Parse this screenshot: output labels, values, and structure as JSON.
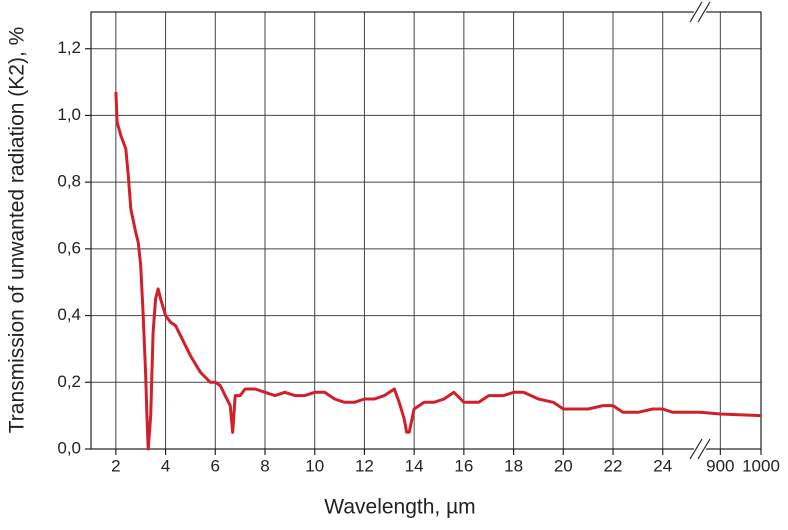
{
  "chart_data": {
    "type": "line",
    "x_label": "Wavelength, µm",
    "y_label": "Transmission of unwanted radiation (K2), %",
    "xlim": [
      1,
      1000
    ],
    "x_break": [
      25.5,
      850
    ],
    "xticks": [
      2,
      4,
      6,
      8,
      10,
      12,
      14,
      16,
      18,
      20,
      22,
      24,
      900,
      1000
    ],
    "ylim": [
      0,
      1.31
    ],
    "yticks": [
      {
        "value": 0,
        "label": "0,0"
      },
      {
        "value": 0.2,
        "label": "0,2"
      },
      {
        "value": 0.4,
        "label": "0,4"
      },
      {
        "value": 0.6,
        "label": "0,6"
      },
      {
        "value": 0.8,
        "label": "0,8"
      },
      {
        "value": 1.0,
        "label": "1,0"
      },
      {
        "value": 1.2,
        "label": "1,2"
      }
    ],
    "grid": true,
    "series": [
      {
        "color": "#d0202a",
        "x": [
          2.0,
          2.05,
          2.2,
          2.4,
          2.5,
          2.6,
          2.8,
          2.9,
          3.0,
          3.1,
          3.2,
          3.25,
          3.3,
          3.4,
          3.5,
          3.6,
          3.7,
          3.8,
          4.0,
          4.2,
          4.4,
          4.6,
          5.0,
          5.4,
          5.8,
          6.0,
          6.2,
          6.4,
          6.6,
          6.7,
          6.8,
          7.0,
          7.2,
          7.6,
          8.0,
          8.4,
          8.8,
          9.2,
          9.6,
          10.0,
          10.4,
          10.8,
          11.2,
          11.6,
          12.0,
          12.4,
          12.8,
          13.2,
          13.4,
          13.6,
          13.7,
          13.8,
          14.0,
          14.4,
          14.8,
          15.2,
          15.6,
          16.0,
          16.6,
          17.0,
          17.6,
          18.0,
          18.4,
          19.0,
          19.6,
          20.0,
          21.0,
          21.6,
          22.0,
          22.4,
          23.0,
          23.6,
          24.0,
          24.4,
          25.0,
          25.5,
          850,
          900,
          1000
        ],
        "values": [
          1.07,
          0.98,
          0.94,
          0.9,
          0.82,
          0.72,
          0.65,
          0.62,
          0.55,
          0.4,
          0.22,
          0.1,
          0.0,
          0.1,
          0.35,
          0.45,
          0.48,
          0.45,
          0.4,
          0.38,
          0.37,
          0.34,
          0.28,
          0.23,
          0.2,
          0.2,
          0.19,
          0.16,
          0.13,
          0.05,
          0.16,
          0.16,
          0.18,
          0.18,
          0.17,
          0.16,
          0.17,
          0.16,
          0.16,
          0.17,
          0.17,
          0.15,
          0.14,
          0.14,
          0.15,
          0.15,
          0.16,
          0.18,
          0.14,
          0.09,
          0.05,
          0.05,
          0.12,
          0.14,
          0.14,
          0.15,
          0.17,
          0.14,
          0.14,
          0.16,
          0.16,
          0.17,
          0.17,
          0.15,
          0.14,
          0.12,
          0.12,
          0.13,
          0.13,
          0.11,
          0.11,
          0.12,
          0.12,
          0.11,
          0.11,
          0.11,
          0.11,
          0.105,
          0.1
        ]
      }
    ]
  }
}
